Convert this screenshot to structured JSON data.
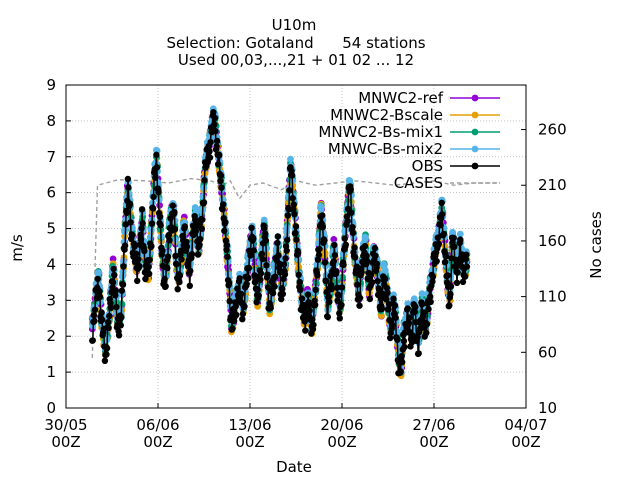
{
  "chart_data": {
    "type": "line",
    "title_lines": [
      "U10m",
      "Selection: Gotaland      54 stations",
      "Used 00,03,...,21 + 01 02 ... 12"
    ],
    "xlabel": "Date",
    "ylabel": "m/s",
    "y2label": "No cases",
    "xlim_days": [
      0,
      35
    ],
    "xticks": [
      {
        "day": 0,
        "line1": "30/05",
        "line2": "00Z"
      },
      {
        "day": 7,
        "line1": "06/06",
        "line2": "00Z"
      },
      {
        "day": 14,
        "line1": "13/06",
        "line2": "00Z"
      },
      {
        "day": 21,
        "line1": "20/06",
        "line2": "00Z"
      },
      {
        "day": 28,
        "line1": "27/06",
        "line2": "00Z"
      },
      {
        "day": 35,
        "line1": "04/07",
        "line2": "00Z"
      }
    ],
    "ylim": [
      0,
      9
    ],
    "yticks": [
      "0",
      "1",
      "2",
      "3",
      "4",
      "5",
      "6",
      "7",
      "8",
      "9"
    ],
    "y2lim": [
      10,
      300
    ],
    "y2ticks": [
      "10",
      "60",
      "110",
      "160",
      "210",
      "260"
    ],
    "grid": true,
    "legend_position": "top-right",
    "series": [
      {
        "name": "MNWC2-ref",
        "color": "#9400d3",
        "offset": 0.0
      },
      {
        "name": "MNWC2-Bscale",
        "color": "#e69f00",
        "offset": -0.04
      },
      {
        "name": "MNWC2-Bs-mix1",
        "color": "#009e73",
        "offset": 0.05
      },
      {
        "name": "MNWC-Bs-mix2",
        "color": "#56b4e9",
        "offset": 0.12
      },
      {
        "name": "OBS",
        "color": "#000000",
        "offset": -0.1
      }
    ],
    "wind_profile": [
      [
        2.0,
        2.2
      ],
      [
        2.3,
        3.2
      ],
      [
        2.5,
        3.6
      ],
      [
        2.7,
        2.5
      ],
      [
        3.0,
        1.6
      ],
      [
        3.3,
        2.6
      ],
      [
        3.6,
        4.0
      ],
      [
        3.9,
        2.4
      ],
      [
        4.2,
        2.6
      ],
      [
        4.5,
        5.0
      ],
      [
        4.7,
        6.2
      ],
      [
        4.9,
        5.4
      ],
      [
        5.1,
        4.6
      ],
      [
        5.4,
        3.9
      ],
      [
        5.6,
        4.4
      ],
      [
        5.8,
        5.3
      ],
      [
        6.0,
        4.1
      ],
      [
        6.3,
        3.8
      ],
      [
        6.5,
        5.0
      ],
      [
        6.7,
        6.3
      ],
      [
        6.9,
        7.0
      ],
      [
        7.1,
        5.6
      ],
      [
        7.3,
        4.3
      ],
      [
        7.5,
        3.6
      ],
      [
        7.7,
        4.0
      ],
      [
        7.9,
        5.2
      ],
      [
        8.2,
        5.6
      ],
      [
        8.4,
        4.0
      ],
      [
        8.6,
        3.6
      ],
      [
        8.8,
        4.4
      ],
      [
        9.0,
        5.2
      ],
      [
        9.2,
        4.3
      ],
      [
        9.4,
        3.8
      ],
      [
        9.6,
        4.7
      ],
      [
        9.9,
        5.4
      ],
      [
        10.1,
        4.4
      ],
      [
        10.4,
        5.6
      ],
      [
        10.6,
        6.8
      ],
      [
        10.9,
        7.3
      ],
      [
        11.1,
        7.9
      ],
      [
        11.3,
        8.1
      ],
      [
        11.5,
        7.4
      ],
      [
        11.8,
        6.3
      ],
      [
        12.0,
        5.5
      ],
      [
        12.2,
        4.6
      ],
      [
        12.4,
        3.6
      ],
      [
        12.6,
        2.2
      ],
      [
        12.9,
        3.0
      ],
      [
        13.2,
        3.4
      ],
      [
        13.5,
        2.8
      ],
      [
        13.7,
        3.5
      ],
      [
        14.0,
        4.5
      ],
      [
        14.2,
        4.9
      ],
      [
        14.4,
        3.7
      ],
      [
        14.6,
        3.0
      ],
      [
        14.9,
        4.4
      ],
      [
        15.1,
        5.1
      ],
      [
        15.3,
        3.9
      ],
      [
        15.5,
        2.8
      ],
      [
        15.8,
        3.6
      ],
      [
        16.1,
        4.6
      ],
      [
        16.4,
        3.3
      ],
      [
        16.7,
        4.0
      ],
      [
        16.9,
        5.6
      ],
      [
        17.1,
        6.8
      ],
      [
        17.4,
        5.4
      ],
      [
        17.7,
        3.9
      ],
      [
        17.9,
        3.1
      ],
      [
        18.2,
        2.4
      ],
      [
        18.4,
        3.2
      ],
      [
        18.7,
        2.2
      ],
      [
        18.9,
        3.0
      ],
      [
        19.2,
        4.2
      ],
      [
        19.4,
        5.6
      ],
      [
        19.7,
        4.3
      ],
      [
        19.9,
        2.8
      ],
      [
        20.2,
        3.6
      ],
      [
        20.4,
        4.6
      ],
      [
        20.6,
        3.4
      ],
      [
        20.9,
        2.8
      ],
      [
        21.1,
        4.1
      ],
      [
        21.4,
        5.5
      ],
      [
        21.6,
        6.3
      ],
      [
        21.8,
        5.1
      ],
      [
        22.0,
        4.1
      ],
      [
        22.3,
        3.1
      ],
      [
        22.5,
        4.0
      ],
      [
        22.8,
        4.6
      ],
      [
        23.1,
        3.2
      ],
      [
        23.4,
        4.4
      ],
      [
        23.7,
        3.8
      ],
      [
        24.0,
        2.7
      ],
      [
        24.2,
        3.9
      ],
      [
        24.4,
        3.3
      ],
      [
        24.7,
        2.2
      ],
      [
        24.9,
        3.0
      ],
      [
        25.1,
        2.4
      ],
      [
        25.3,
        1.4
      ],
      [
        25.5,
        1.1
      ],
      [
        25.7,
        2.1
      ],
      [
        26.0,
        2.6
      ],
      [
        26.3,
        2.0
      ],
      [
        26.5,
        2.9
      ],
      [
        26.8,
        1.8
      ],
      [
        27.1,
        2.9
      ],
      [
        27.4,
        2.2
      ],
      [
        27.6,
        3.1
      ],
      [
        27.9,
        3.8
      ],
      [
        28.1,
        4.4
      ],
      [
        28.4,
        4.9
      ],
      [
        28.6,
        5.6
      ],
      [
        28.8,
        4.6
      ],
      [
        29.0,
        3.6
      ],
      [
        29.2,
        3.0
      ],
      [
        29.4,
        4.8
      ],
      [
        29.6,
        4.2
      ],
      [
        29.8,
        3.9
      ],
      [
        30.0,
        4.5
      ],
      [
        30.3,
        3.8
      ],
      [
        30.5,
        4.1
      ]
    ],
    "cases": [
      [
        2.0,
        55
      ],
      [
        2.4,
        210
      ],
      [
        4.0,
        215
      ],
      [
        6.0,
        214
      ],
      [
        7.8,
        212
      ],
      [
        9.5,
        216
      ],
      [
        11.0,
        214
      ],
      [
        11.9,
        210
      ],
      [
        12.5,
        214
      ],
      [
        13.2,
        198
      ],
      [
        14.0,
        210
      ],
      [
        15.0,
        212
      ],
      [
        16.4,
        206
      ],
      [
        17.5,
        214
      ],
      [
        19.0,
        210
      ],
      [
        20.5,
        212
      ],
      [
        22.0,
        214
      ],
      [
        23.5,
        212
      ],
      [
        25.0,
        210
      ],
      [
        26.5,
        212
      ],
      [
        28.0,
        214
      ],
      [
        29.5,
        210
      ],
      [
        31.0,
        212
      ],
      [
        32.8,
        212
      ]
    ],
    "cases_color": "#a0a0a0",
    "cases_name": "CASES"
  }
}
